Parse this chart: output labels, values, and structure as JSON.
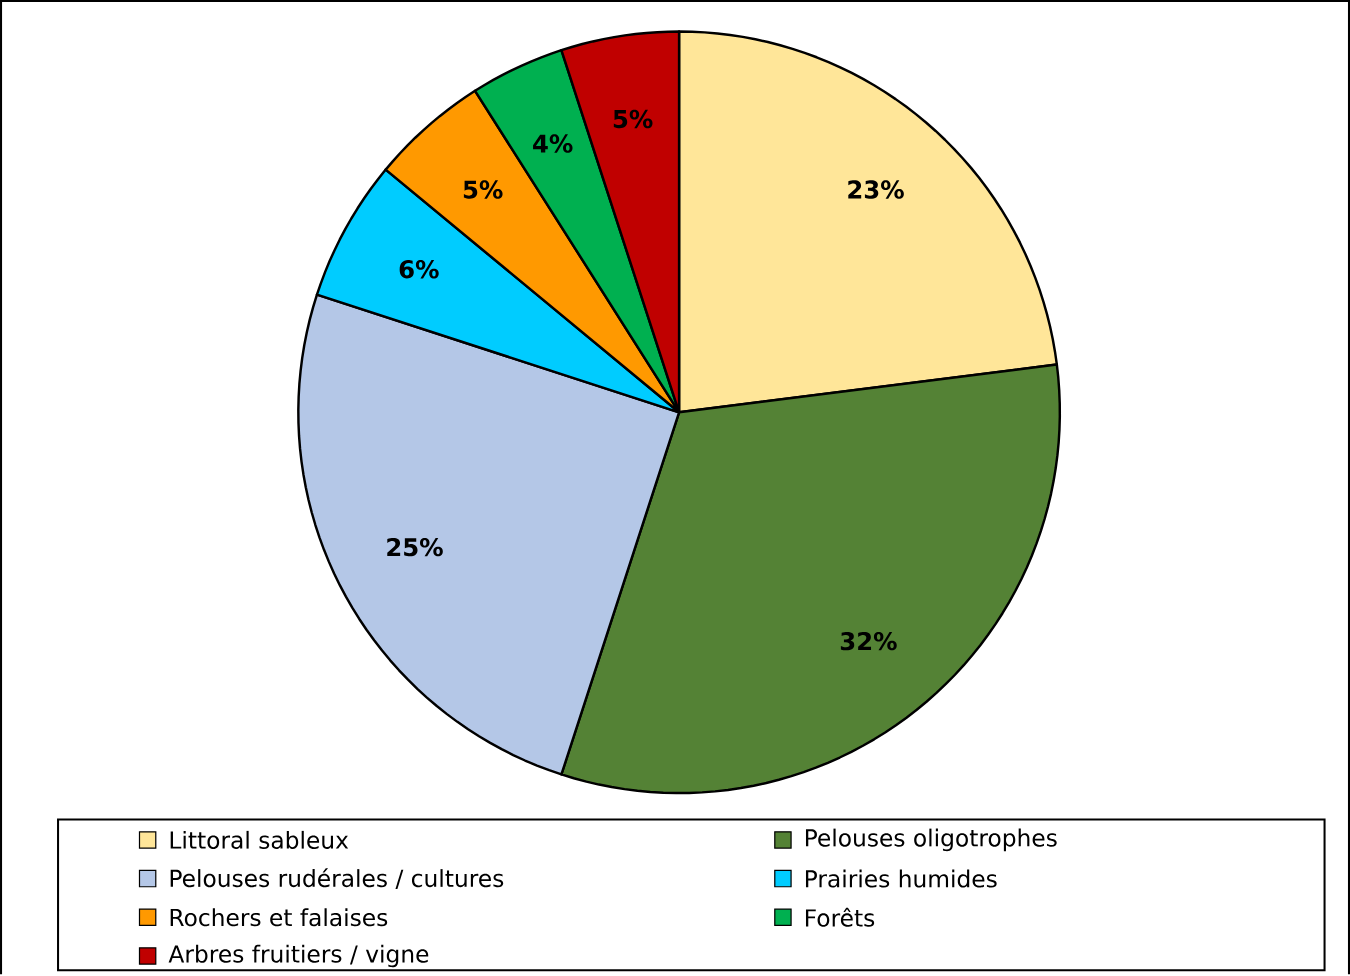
{
  "chart_data": {
    "type": "pie",
    "categories": [
      "Littoral sableux",
      "Pelouses oligotrophes",
      "Pelouses rudérales / cultures",
      "Prairies humides",
      "Rochers et falaises",
      "Forêts",
      "Arbres fruitiers / vigne"
    ],
    "values": [
      23,
      32,
      25,
      6,
      5,
      4,
      5
    ],
    "value_labels": [
      "23%",
      "32%",
      "25%",
      "6%",
      "5%",
      "4%",
      "5%"
    ],
    "colors": [
      "#ffe699",
      "#548235",
      "#b4c7e7",
      "#00ccff",
      "#ff9900",
      "#00b050",
      "#c00000"
    ],
    "legend": "bottom"
  }
}
